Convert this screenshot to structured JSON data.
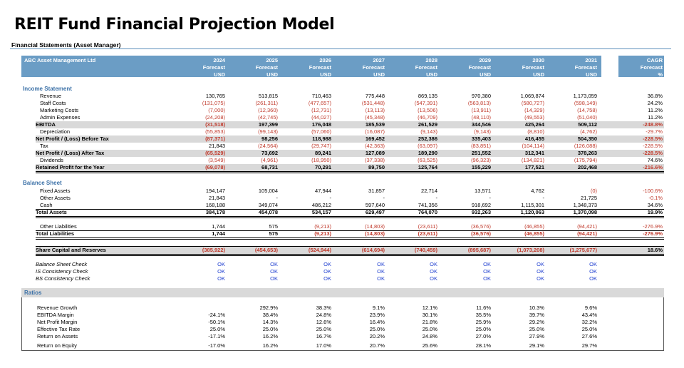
{
  "title": "REIT Fund Financial Projection Model",
  "subtitle": "Financial Statements (Asset Manager)",
  "header": {
    "company": "ABC Asset Management Ltd",
    "years": [
      {
        "y": "2024",
        "f": "Forecast",
        "c": "USD"
      },
      {
        "y": "2025",
        "f": "Forecast",
        "c": "USD"
      },
      {
        "y": "2026",
        "f": "Forecast",
        "c": "USD"
      },
      {
        "y": "2027",
        "f": "Forecast",
        "c": "USD"
      },
      {
        "y": "2028",
        "f": "Forecast",
        "c": "USD"
      },
      {
        "y": "2029",
        "f": "Forecast",
        "c": "USD"
      },
      {
        "y": "2030",
        "f": "Forecast",
        "c": "USD"
      },
      {
        "y": "2031",
        "f": "Forecast",
        "c": "USD"
      }
    ],
    "cagr": {
      "y": "CAGR",
      "f": "Forecast",
      "c": "%"
    }
  },
  "income_title": "Income Statement",
  "income": [
    {
      "label": "Revenue",
      "vals": [
        "130,765",
        "513,815",
        "710,463",
        "775,448",
        "869,135",
        "970,380",
        "1,069,874",
        "1,173,059"
      ],
      "cagr": "36.8%"
    },
    {
      "label": "Staff Costs",
      "vals": [
        "(131,075)",
        "(261,311)",
        "(477,657)",
        "(531,448)",
        "(547,391)",
        "(563,813)",
        "(580,727)",
        "(598,149)"
      ],
      "cagr": "24.2%"
    },
    {
      "label": "Marketing Costs",
      "vals": [
        "(7,000)",
        "(12,360)",
        "(12,731)",
        "(13,113)",
        "(13,506)",
        "(13,911)",
        "(14,329)",
        "(14,758)"
      ],
      "cagr": "11.2%"
    },
    {
      "label": "Admin Expenses",
      "vals": [
        "(24,208)",
        "(42,745)",
        "(44,027)",
        "(45,348)",
        "(46,709)",
        "(48,110)",
        "(49,553)",
        "(51,040)"
      ],
      "cagr": "11.2%"
    },
    {
      "label": "EBITDA",
      "vals": [
        "(31,518)",
        "197,399",
        "176,048",
        "185,539",
        "261,529",
        "344,546",
        "425,264",
        "509,112"
      ],
      "cagr": "-248.8%"
    },
    {
      "label": "Depreciation",
      "vals": [
        "(55,853)",
        "(99,143)",
        "(57,060)",
        "(16,087)",
        "(9,143)",
        "(9,143)",
        "(8,810)",
        "(4,762)"
      ],
      "cagr": "-29.7%"
    },
    {
      "label": "Net Profit / (Loss) Before Tax",
      "vals": [
        "(87,371)",
        "98,256",
        "118,988",
        "169,452",
        "252,386",
        "335,403",
        "416,455",
        "504,350"
      ],
      "cagr": "-228.5%"
    },
    {
      "label": "Tax",
      "vals": [
        "21,843",
        "(24,564)",
        "(29,747)",
        "(42,363)",
        "(63,097)",
        "(83,851)",
        "(104,114)",
        "(126,088)"
      ],
      "cagr": "-228.5%"
    },
    {
      "label": "Net Profit / (Loss) After Tax",
      "vals": [
        "(65,529)",
        "73,692",
        "89,241",
        "127,089",
        "189,290",
        "251,552",
        "312,341",
        "378,263"
      ],
      "cagr": "-228.5%"
    },
    {
      "label": "Dividends",
      "vals": [
        "(3,549)",
        "(4,961)",
        "(18,950)",
        "(37,338)",
        "(63,525)",
        "(96,323)",
        "(134,821)",
        "(175,794)"
      ],
      "cagr": "74.6%"
    },
    {
      "label": "Retained Profit for the Year",
      "vals": [
        "(69,078)",
        "68,731",
        "70,291",
        "89,750",
        "125,764",
        "155,229",
        "177,521",
        "202,468"
      ],
      "cagr": "-216.6%"
    }
  ],
  "balance_title": "Balance Sheet",
  "balance": [
    {
      "label": "Fixed Assets",
      "vals": [
        "194,147",
        "105,004",
        "47,944",
        "31,857",
        "22,714",
        "13,571",
        "4,762",
        "(0)"
      ],
      "cagr": "-100.6%"
    },
    {
      "label": "Other Assets",
      "vals": [
        "21,843",
        "-",
        "-",
        "-",
        "-",
        "-",
        "-",
        "21,725"
      ],
      "cagr": "-0.1%"
    },
    {
      "label": "Cash",
      "vals": [
        "168,188",
        "349,074",
        "486,212",
        "597,640",
        "741,356",
        "918,692",
        "1,115,301",
        "1,348,373"
      ],
      "cagr": "34.6%"
    },
    {
      "label": "Total Assets",
      "vals": [
        "384,178",
        "454,078",
        "534,157",
        "629,497",
        "764,070",
        "932,263",
        "1,120,063",
        "1,370,098"
      ],
      "cagr": "19.9%"
    },
    {
      "label": "Other Liabilities",
      "vals": [
        "1,744",
        "575",
        "(9,213)",
        "(14,803)",
        "(23,611)",
        "(36,576)",
        "(46,855)",
        "(94,421)"
      ],
      "cagr": "-276.9%"
    },
    {
      "label": "Total Liabilities",
      "vals": [
        "1,744",
        "575",
        "(9,213)",
        "(14,803)",
        "(23,611)",
        "(36,576)",
        "(46,855)",
        "(94,421)"
      ],
      "cagr": "-276.9%"
    },
    {
      "label": "Share Capital and Reserves",
      "vals": [
        "(385,922)",
        "(454,653)",
        "(524,944)",
        "(614,694)",
        "(740,459)",
        "(895,687)",
        "(1,073,208)",
        "(1,275,677)"
      ],
      "cagr": "18.6%"
    }
  ],
  "checks": [
    {
      "label": "Balance Sheet Check",
      "vals": [
        "OK",
        "OK",
        "OK",
        "OK",
        "OK",
        "OK",
        "OK",
        "OK"
      ]
    },
    {
      "label": "IS Consistency Check",
      "vals": [
        "OK",
        "OK",
        "OK",
        "OK",
        "OK",
        "OK",
        "OK",
        "OK"
      ]
    },
    {
      "label": "BS Consistency Check",
      "vals": [
        "OK",
        "OK",
        "OK",
        "OK",
        "OK",
        "OK",
        "OK",
        "OK"
      ]
    }
  ],
  "ratios_title": "Ratios",
  "ratios": [
    {
      "label": "Revenue Growth",
      "vals": [
        "",
        "292.9%",
        "38.3%",
        "9.1%",
        "12.1%",
        "11.6%",
        "10.3%",
        "9.6%"
      ]
    },
    {
      "label": "EBITDA Margin",
      "vals": [
        "-24.1%",
        "38.4%",
        "24.8%",
        "23.9%",
        "30.1%",
        "35.5%",
        "39.7%",
        "43.4%"
      ]
    },
    {
      "label": "Net Profit Margin",
      "vals": [
        "-50.1%",
        "14.3%",
        "12.6%",
        "16.4%",
        "21.8%",
        "25.9%",
        "29.2%",
        "32.2%"
      ]
    },
    {
      "label": "Effective Tax Rate",
      "vals": [
        "25.0%",
        "25.0%",
        "25.0%",
        "25.0%",
        "25.0%",
        "25.0%",
        "25.0%",
        "25.0%"
      ]
    },
    {
      "label": "Return on Assets",
      "vals": [
        "-17.1%",
        "16.2%",
        "16.7%",
        "20.2%",
        "24.8%",
        "27.0%",
        "27.9%",
        "27.6%"
      ]
    },
    {
      "label": "Return on Equity",
      "vals": [
        "-17.0%",
        "16.2%",
        "17.0%",
        "20.7%",
        "25.6%",
        "28.1%",
        "29.1%",
        "29.7%"
      ]
    }
  ],
  "colors": {
    "header_bg": "#6b9dc5",
    "section": "#3d72a8",
    "negative": "#c0392b",
    "ok": "#1f3fd0",
    "shade": "#d9d9d9"
  }
}
